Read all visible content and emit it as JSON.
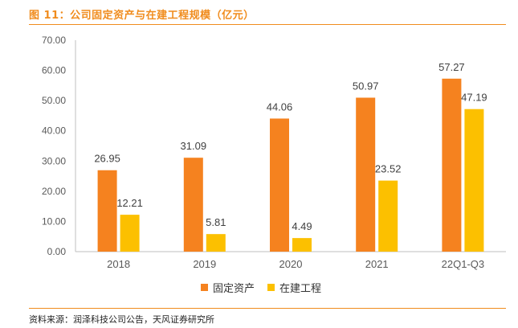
{
  "title": "图 11：公司固定资产与在建工程规模（亿元）",
  "source": "资料来源：润泽科技公司公告，天风证券研究所",
  "colors": {
    "accent": "#f08c1d",
    "fixed_assets": "#f5821f",
    "cip": "#fcc000"
  },
  "chart_data": {
    "type": "bar",
    "categories": [
      "2018",
      "2019",
      "2020",
      "2021",
      "22Q1-Q3"
    ],
    "series": [
      {
        "name": "固定资产",
        "values": [
          26.95,
          31.09,
          44.06,
          50.97,
          57.27
        ]
      },
      {
        "name": "在建工程",
        "values": [
          12.21,
          5.81,
          4.49,
          23.52,
          47.19
        ]
      }
    ],
    "ylim": [
      0,
      70
    ],
    "yticks": [
      "0.00",
      "10.00",
      "20.00",
      "30.00",
      "40.00",
      "50.00",
      "60.00",
      "70.00"
    ],
    "data_labels": [
      [
        "26.95",
        "31.09",
        "44.06",
        "50.97",
        "57.27"
      ],
      [
        "12.21",
        "5.81",
        "4.49",
        "23.52",
        "47.19"
      ]
    ],
    "grid": false,
    "legend_position": "bottom"
  }
}
